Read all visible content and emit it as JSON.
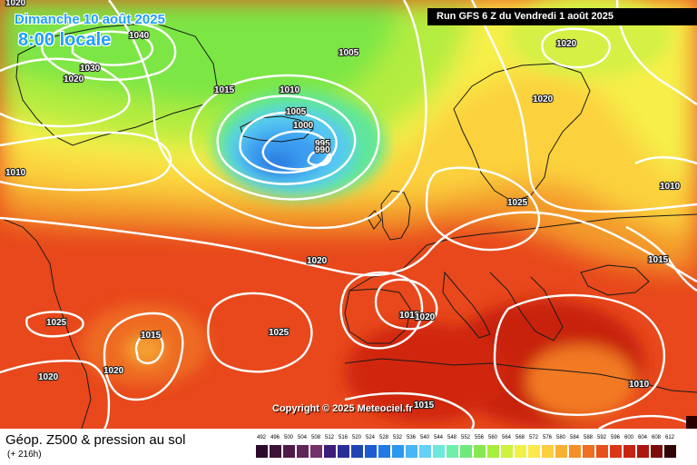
{
  "header": {
    "date": "Dimanche 10 août 2025",
    "time": "8:00 locale",
    "run": "Run GFS 6 Z du Vendredi 1 août 2025"
  },
  "copyright": "Copyright © 2025 Meteociel.fr",
  "legend": {
    "title": "Géop. Z500 & pression au sol",
    "subtitle": "(+ 216h)",
    "scale": [
      {
        "value": "492",
        "color": "#2c0a2c"
      },
      {
        "value": "496",
        "color": "#3e1238"
      },
      {
        "value": "500",
        "color": "#4f1a48"
      },
      {
        "value": "504",
        "color": "#612558"
      },
      {
        "value": "508",
        "color": "#743068"
      },
      {
        "value": "512",
        "color": "#3a1e7a"
      },
      {
        "value": "516",
        "color": "#2a2e96"
      },
      {
        "value": "520",
        "color": "#1f44b4"
      },
      {
        "value": "524",
        "color": "#1c5cd0"
      },
      {
        "value": "528",
        "color": "#1f7ae6"
      },
      {
        "value": "532",
        "color": "#2a98f0"
      },
      {
        "value": "536",
        "color": "#46b6f6"
      },
      {
        "value": "540",
        "color": "#64d0f6"
      },
      {
        "value": "544",
        "color": "#6ee8dc"
      },
      {
        "value": "548",
        "color": "#6ef0aa"
      },
      {
        "value": "552",
        "color": "#6eea7a"
      },
      {
        "value": "556",
        "color": "#86e84e"
      },
      {
        "value": "560",
        "color": "#a8ee3c"
      },
      {
        "value": "564",
        "color": "#ccf23e"
      },
      {
        "value": "568",
        "color": "#eef248"
      },
      {
        "value": "572",
        "color": "#fde84a"
      },
      {
        "value": "576",
        "color": "#fbd03c"
      },
      {
        "value": "580",
        "color": "#f8b032"
      },
      {
        "value": "584",
        "color": "#f49028"
      },
      {
        "value": "588",
        "color": "#ef6e20"
      },
      {
        "value": "592",
        "color": "#e8501c"
      },
      {
        "value": "596",
        "color": "#dc3618"
      },
      {
        "value": "600",
        "color": "#c82414"
      },
      {
        "value": "604",
        "color": "#aa1810"
      },
      {
        "value": "608",
        "color": "#7c0c0c"
      },
      {
        "value": "612",
        "color": "#300404"
      }
    ]
  },
  "isobar_labels": [
    {
      "text": "1020"
    },
    {
      "text": "1040"
    },
    {
      "text": "1030"
    },
    {
      "text": "1020"
    },
    {
      "text": "1015"
    },
    {
      "text": "1010"
    },
    {
      "text": "1005"
    },
    {
      "text": "1005"
    },
    {
      "text": "1000"
    },
    {
      "text": "995"
    },
    {
      "text": "990"
    },
    {
      "text": "1010"
    },
    {
      "text": "1020"
    },
    {
      "text": "1020"
    },
    {
      "text": "1025"
    },
    {
      "text": "1010"
    },
    {
      "text": "1020"
    },
    {
      "text": "1025"
    },
    {
      "text": "1015"
    },
    {
      "text": "1020"
    },
    {
      "text": "1020"
    },
    {
      "text": "1025"
    },
    {
      "text": "1015"
    },
    {
      "text": "1010"
    },
    {
      "text": "1020"
    },
    {
      "text": "1015"
    },
    {
      "text": "1010"
    },
    {
      "text": "1015"
    }
  ]
}
